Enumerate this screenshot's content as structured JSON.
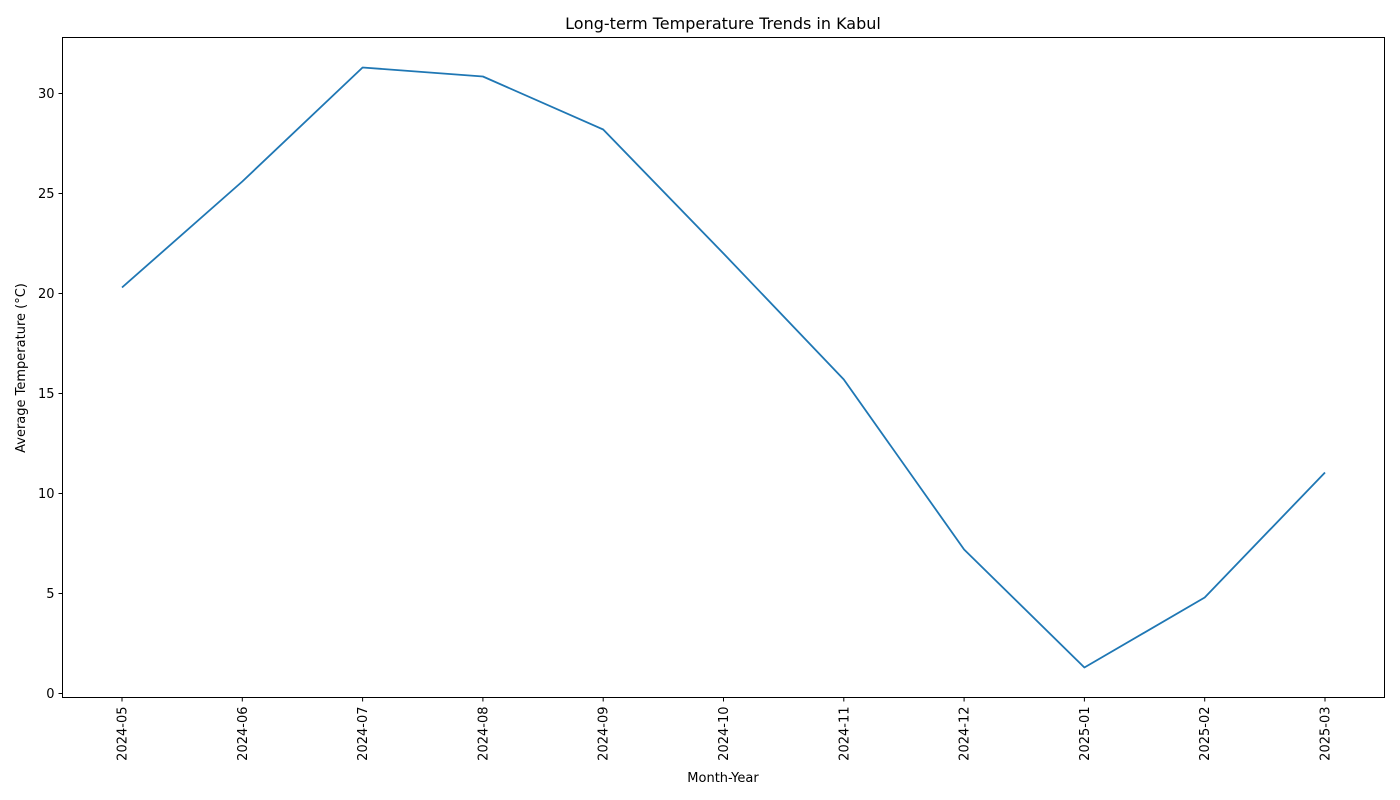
{
  "chart_data": {
    "type": "line",
    "title": "Long-term Temperature Trends in Kabul",
    "xlabel": "Month-Year",
    "ylabel": "Average Temperature (°C)",
    "categories": [
      "2024-05",
      "2024-06",
      "2024-07",
      "2024-08",
      "2024-09",
      "2024-10",
      "2024-11",
      "2024-12",
      "2025-01",
      "2025-02",
      "2025-03"
    ],
    "series": [
      {
        "values": [
          20.3,
          25.6,
          31.3,
          30.85,
          28.2,
          22.0,
          15.7,
          7.2,
          1.3,
          4.8,
          11.05
        ],
        "color": "#1f77b4"
      }
    ],
    "ylim": [
      -0.2,
      32.8
    ],
    "yticks": [
      0,
      5,
      10,
      15,
      20,
      25,
      30
    ],
    "grid": false,
    "legend": "none"
  }
}
